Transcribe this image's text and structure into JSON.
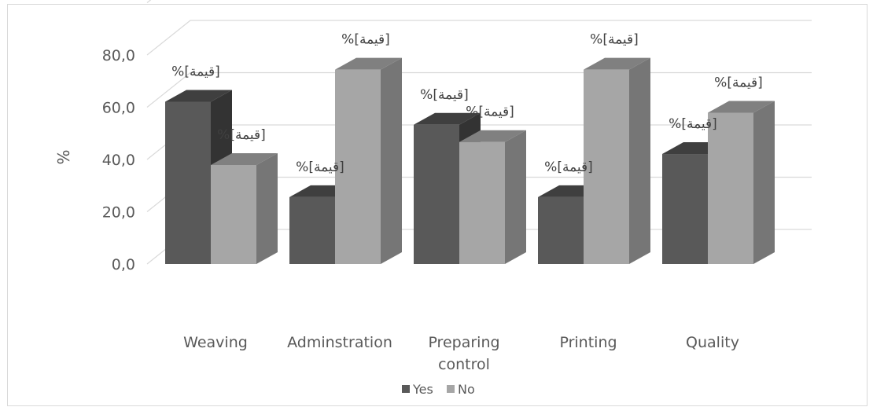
{
  "chart_data": {
    "type": "bar",
    "variant": "3d-clustered-column",
    "categories": [
      "Weaving",
      "Adminstration",
      "Preparing\ncontrol",
      "Printing",
      "Quality"
    ],
    "series": [
      {
        "name": "Yes",
        "values": [
          62.1,
          25.6,
          53.3,
          25.6,
          42.1
        ],
        "data_labels": [
          "%[قيمة]",
          "%[قيمة]",
          "%[قيمة]",
          "%[قيمة]",
          "%[قيمة]"
        ]
      },
      {
        "name": "No",
        "values": [
          37.9,
          74.4,
          46.7,
          74.4,
          57.9
        ],
        "data_labels": [
          "%[قيمة]",
          "%[قيمة]",
          "%[قيمة]",
          "%[قيمة]",
          "%[قيمة]"
        ]
      }
    ],
    "ylabel": "%",
    "yticks": [
      "0,0",
      "20,0",
      "40,0",
      "60,0",
      "80,0"
    ],
    "ylim": [
      0,
      80
    ],
    "grid": true,
    "legend": "bottom",
    "colors": {
      "Yes": "#595959",
      "No": "#a6a6a6",
      "grid": "#d9d9d9",
      "text": "#595959"
    }
  }
}
